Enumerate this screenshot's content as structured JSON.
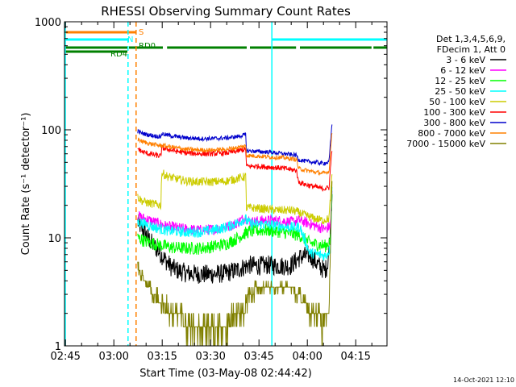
{
  "chart_data": {
    "type": "line",
    "title": "RHESSI Observing Summary Count Rates",
    "xlabel": "Start Time (03-May-08 02:44:42)",
    "ylabel": "Count Rate (s⁻¹ detector⁻¹)",
    "yscale": "log",
    "ylim": [
      1,
      1000
    ],
    "xlim_minutes": [
      0,
      100
    ],
    "x_ticks": [
      "02:45",
      "03:00",
      "03:15",
      "03:30",
      "03:45",
      "04:00",
      "04:15"
    ],
    "y_ticks": [
      "1",
      "10",
      "100",
      "1000"
    ],
    "legend_header": [
      "Det 1,3,4,5,6,9,",
      "FDecim 1, Att 0"
    ],
    "legend_position": "right",
    "footer_date": "14-Oct-2021 12:10",
    "flags": [
      {
        "label": "S",
        "color": "#ff8000",
        "segments": [
          [
            0,
            22.2
          ],
          [
            100.6,
            102
          ]
        ]
      },
      {
        "label": "N",
        "color": "#00ffff",
        "segments": [
          [
            0,
            19.5
          ],
          [
            64.2,
            101
          ]
        ]
      },
      {
        "label": "RD0",
        "color": "#008000",
        "segments": [
          [
            20.0,
            30.5
          ],
          [
            31.8,
            56.5
          ],
          [
            57.5,
            71.8
          ],
          [
            73.0,
            95.2
          ],
          [
            95.8,
            102
          ]
        ]
      },
      {
        "label": "RD4",
        "color": "#008000",
        "segments": [
          [
            0,
            19.5
          ]
        ]
      }
    ],
    "series": [
      {
        "name": "3 - 6 keV",
        "color": "#000000",
        "x": [
          22.7,
          25,
          27,
          30,
          33,
          35,
          38,
          42,
          46,
          50,
          54,
          57,
          60,
          63,
          66,
          70,
          73,
          76,
          78,
          79.5,
          80.7,
          81.5,
          82.5,
          83
        ],
        "y": [
          14,
          11,
          9,
          7,
          5.4,
          5.0,
          4.7,
          4.6,
          4.6,
          4.7,
          5.1,
          5.6,
          5.5,
          5.6,
          5.5,
          5.5,
          6.6,
          7,
          5.9,
          5.3,
          5.0,
          5.5,
          12,
          30
        ]
      },
      {
        "name": "6 - 12 keV",
        "color": "#ff00ff",
        "x": [
          22.7,
          25,
          28,
          31,
          34,
          38,
          42,
          46,
          50,
          53,
          56,
          57.5,
          62,
          66,
          70,
          73,
          76,
          79,
          81,
          82.5,
          83
        ],
        "y": [
          16,
          15,
          14,
          13,
          12.5,
          12,
          11.8,
          12,
          12.5,
          13.5,
          15.5,
          14,
          14.5,
          14.5,
          14,
          14.5,
          13.5,
          12.5,
          12,
          13,
          30
        ]
      },
      {
        "name": "12 - 25 keV",
        "color": "#00ff00",
        "x": [
          22.7,
          25,
          28,
          31,
          34,
          38,
          42,
          46,
          50,
          53,
          56,
          57.5,
          62,
          66,
          70,
          73,
          76,
          79,
          81,
          82.5,
          83
        ],
        "y": [
          10,
          9.3,
          8.8,
          8.4,
          8.1,
          8.0,
          8.0,
          8.3,
          8.8,
          9.7,
          11,
          11.5,
          11.8,
          11.5,
          11,
          10.5,
          9.0,
          8.6,
          8.4,
          9.5,
          30
        ]
      },
      {
        "name": "25 - 50 keV",
        "color": "#00ffff",
        "x": [
          22.7,
          25,
          28,
          31,
          34,
          38,
          42,
          46,
          50,
          53,
          56,
          57.5,
          62,
          66,
          70,
          73,
          76,
          79,
          81,
          82.5,
          83
        ],
        "y": [
          14,
          13.5,
          12.5,
          11.8,
          11.5,
          11.3,
          11.3,
          11.8,
          12.5,
          13.5,
          15,
          13.5,
          13.3,
          13,
          12.5,
          12.5,
          7.3,
          7,
          6.8,
          8,
          35
        ]
      },
      {
        "name": "50 - 100 keV",
        "color": "#cccc00",
        "x": [
          22.7,
          24,
          26,
          29.9,
          30.1,
          32,
          35,
          38,
          42,
          46,
          50,
          53,
          56.2,
          56.4,
          58,
          62,
          66,
          70,
          72,
          75,
          78,
          80,
          82,
          83
        ],
        "y": [
          24,
          22,
          21,
          20,
          40,
          37,
          35,
          33.5,
          33,
          33,
          33.5,
          35,
          37,
          19,
          19,
          18.5,
          18,
          18,
          17.5,
          16,
          15,
          14.5,
          15,
          40
        ]
      },
      {
        "name": "100 - 300 keV",
        "color": "#ff0000",
        "x": [
          22.7,
          24,
          26,
          29.9,
          30.1,
          32,
          35,
          38,
          42,
          46,
          50,
          53,
          56.2,
          56.4,
          60,
          64,
          68,
          72,
          72.5,
          75,
          78,
          80,
          82,
          83
        ],
        "y": [
          67,
          63,
          60,
          57,
          68,
          66,
          63,
          61,
          60,
          60,
          61,
          63,
          66,
          46,
          46,
          45,
          44,
          42,
          33,
          31,
          29.5,
          28.5,
          29,
          70
        ]
      },
      {
        "name": "300 - 800 keV",
        "color": "#0000cc",
        "x": [
          22.7,
          24,
          26,
          29.9,
          30.1,
          32,
          35,
          38,
          42,
          46,
          50,
          53,
          56.2,
          56.4,
          60,
          64,
          68,
          72,
          72.5,
          75,
          78,
          80,
          82,
          83
        ],
        "y": [
          97,
          93,
          90,
          86,
          92,
          89,
          86,
          84,
          83,
          83,
          84,
          86,
          90,
          64,
          63,
          62,
          60,
          58,
          53,
          51,
          50,
          49,
          50,
          120
        ]
      },
      {
        "name": "800 - 7000 keV",
        "color": "#ff8000",
        "x": [
          22.7,
          24,
          26,
          29.9,
          30.1,
          32,
          35,
          38,
          42,
          46,
          50,
          53,
          56.2,
          56.4,
          60,
          64,
          68,
          72,
          72.5,
          75,
          78,
          80,
          82,
          83
        ],
        "y": [
          82,
          78,
          75,
          71,
          72,
          70,
          68,
          66,
          65,
          65,
          66,
          68,
          71,
          58,
          57,
          56,
          55,
          53,
          44,
          42,
          40.5,
          39.5,
          41,
          100
        ]
      },
      {
        "name": "7000 - 15000 keV",
        "color": "#808000",
        "x": [
          22.7,
          24,
          26,
          28,
          30,
          32,
          35,
          38,
          42,
          46,
          50,
          53,
          56,
          57,
          60,
          64,
          68,
          72,
          74,
          76,
          78,
          80,
          82,
          83
        ],
        "y": [
          5.5,
          4.5,
          3.5,
          3.0,
          2.6,
          2.2,
          1.9,
          1.6,
          1.5,
          1.5,
          1.6,
          1.9,
          2.2,
          3.0,
          3.4,
          3.5,
          3.4,
          3.2,
          2.5,
          2.2,
          2.0,
          1.7,
          2.0,
          40
        ]
      }
    ],
    "vlines": [
      {
        "x": 19.7,
        "color": "#00ffff",
        "style": "dashed"
      },
      {
        "x": 22.2,
        "color": "#ff8000",
        "style": "dashed"
      },
      {
        "x": 64.3,
        "color": "#00ffff",
        "style": "solid"
      },
      {
        "x": 100.1,
        "color": "#ff8000",
        "style": "solid"
      },
      {
        "x": 101.2,
        "color": "#00ffff",
        "style": "dashed"
      },
      {
        "x": 102.5,
        "color": "#ff8000",
        "style": "dashed"
      }
    ]
  }
}
